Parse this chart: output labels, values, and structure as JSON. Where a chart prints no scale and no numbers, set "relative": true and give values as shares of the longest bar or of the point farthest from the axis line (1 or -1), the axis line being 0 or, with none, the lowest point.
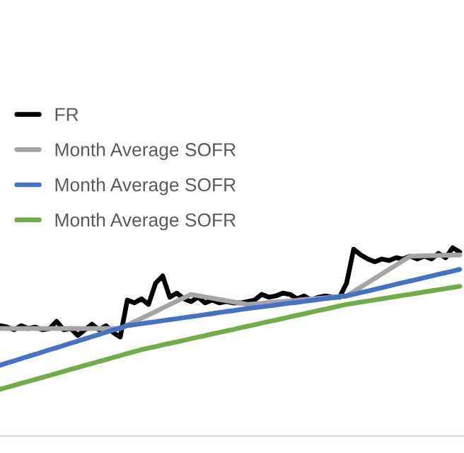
{
  "chart_data": {
    "type": "line",
    "relative": true,
    "legend": "top left",
    "grid": false,
    "marker": "none",
    "line_style": "solid",
    "categories": [
      null,
      null,
      null,
      null,
      null,
      null,
      null,
      null,
      null,
      null,
      null,
      null,
      null,
      null,
      null,
      null,
      null,
      null,
      null,
      null,
      null,
      null,
      null,
      null,
      null,
      null,
      null,
      null,
      null,
      null,
      null,
      null,
      null,
      null,
      null,
      null,
      null,
      null,
      null,
      null,
      null,
      null,
      null,
      null,
      null,
      null,
      null,
      null,
      null,
      null,
      null,
      null,
      null,
      null,
      null,
      null,
      null,
      null,
      null,
      null,
      null,
      null,
      null,
      null,
      null,
      null
    ],
    "series": [
      {
        "name": "FR",
        "color": "#000000",
        "values": [
          0.586,
          0.579,
          0.564,
          0.586,
          0.571,
          0.579,
          0.564,
          0.571,
          0.609,
          0.564,
          0.571,
          0.534,
          0.564,
          0.594,
          0.564,
          0.586,
          0.549,
          0.526,
          0.722,
          0.707,
          0.729,
          0.699,
          0.812,
          0.85,
          0.737,
          0.759,
          0.729,
          0.714,
          0.737,
          0.707,
          0.722,
          0.707,
          0.714,
          0.707,
          0.707,
          0.714,
          0.722,
          0.752,
          0.737,
          0.744,
          0.759,
          0.752,
          0.729,
          0.744,
          0.722,
          0.737,
          0.744,
          0.737,
          0.737,
          0.812,
          0.992,
          0.962,
          0.94,
          0.925,
          0.94,
          0.932,
          0.947,
          0.94,
          0.955,
          0.94,
          0.955,
          0.94,
          0.97,
          0.947,
          1.0,
          0.977
        ]
      },
      {
        "name": "Month Average SOFR",
        "color": "#a5a5a5",
        "values": [
          0.571,
          0.571,
          0.571,
          0.571,
          0.571,
          0.571,
          0.571,
          0.571,
          0.571,
          0.571,
          0.571,
          0.571,
          0.571,
          0.571,
          0.571,
          0.571,
          0.571,
          0.571,
          0.589,
          0.607,
          0.625,
          0.643,
          0.661,
          0.68,
          0.698,
          0.716,
          0.734,
          0.752,
          0.745,
          0.739,
          0.732,
          0.725,
          0.719,
          0.712,
          0.706,
          0.699,
          0.702,
          0.705,
          0.709,
          0.712,
          0.715,
          0.718,
          0.721,
          0.725,
          0.728,
          0.731,
          0.734,
          0.737,
          0.741,
          0.744,
          0.767,
          0.791,
          0.814,
          0.838,
          0.861,
          0.885,
          0.908,
          0.932,
          0.955,
          0.956,
          0.957,
          0.958,
          0.959,
          0.96,
          0.961,
          0.962
        ]
      },
      {
        "name": "Month Average SOFR",
        "color": "#4472c4",
        "values": [
          0.376,
          0.388,
          0.399,
          0.411,
          0.423,
          0.434,
          0.446,
          0.458,
          0.469,
          0.481,
          0.493,
          0.504,
          0.516,
          0.528,
          0.539,
          0.551,
          0.563,
          0.574,
          0.586,
          0.591,
          0.597,
          0.602,
          0.607,
          0.613,
          0.618,
          0.623,
          0.629,
          0.634,
          0.639,
          0.645,
          0.65,
          0.656,
          0.661,
          0.666,
          0.672,
          0.677,
          0.682,
          0.686,
          0.691,
          0.696,
          0.701,
          0.706,
          0.71,
          0.715,
          0.72,
          0.725,
          0.73,
          0.734,
          0.739,
          0.744,
          0.753,
          0.762,
          0.77,
          0.779,
          0.788,
          0.797,
          0.806,
          0.815,
          0.823,
          0.832,
          0.841,
          0.85,
          0.859,
          0.867,
          0.876,
          0.885
        ]
      },
      {
        "name": "Month Average SOFR",
        "color": "#70ad47",
        "values": [
          0.248,
          0.259,
          0.269,
          0.28,
          0.29,
          0.301,
          0.311,
          0.322,
          0.332,
          0.343,
          0.354,
          0.364,
          0.375,
          0.385,
          0.396,
          0.406,
          0.417,
          0.427,
          0.438,
          0.448,
          0.459,
          0.467,
          0.475,
          0.484,
          0.492,
          0.5,
          0.508,
          0.517,
          0.525,
          0.533,
          0.542,
          0.55,
          0.558,
          0.566,
          0.575,
          0.583,
          0.591,
          0.6,
          0.608,
          0.616,
          0.624,
          0.633,
          0.641,
          0.649,
          0.658,
          0.666,
          0.674,
          0.682,
          0.691,
          0.699,
          0.705,
          0.711,
          0.717,
          0.723,
          0.729,
          0.735,
          0.741,
          0.747,
          0.753,
          0.759,
          0.765,
          0.771,
          0.777,
          0.783,
          0.789,
          0.795
        ]
      }
    ]
  }
}
